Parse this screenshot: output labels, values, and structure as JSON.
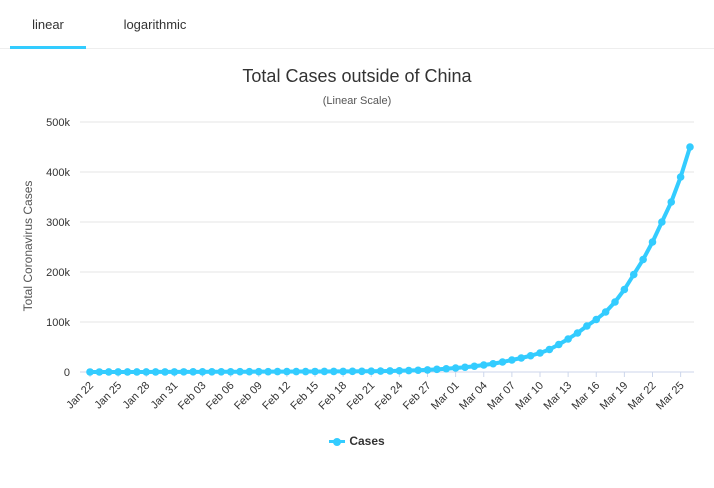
{
  "tabs": [
    {
      "label": "linear",
      "active": true
    },
    {
      "label": "logarithmic",
      "active": false
    }
  ],
  "colors": {
    "series": "#33ccff",
    "grid": "#e6e6e6",
    "tab_underline": "#33ccff"
  },
  "legend_icon": "line-with-circle-marker",
  "chart_data": {
    "type": "line",
    "title": "Total Cases outside of China",
    "subtitle": "(Linear Scale)",
    "xlabel": "",
    "ylabel": "Total Coronavirus Cases",
    "ylim": [
      0,
      500000
    ],
    "y_ticks": [
      0,
      100000,
      200000,
      300000,
      400000,
      500000
    ],
    "y_tick_labels": [
      "0",
      "100k",
      "200k",
      "300k",
      "400k",
      "500k"
    ],
    "x_tick_labels": [
      "Jan 22",
      "Jan 25",
      "Jan 28",
      "Jan 31",
      "Feb 03",
      "Feb 06",
      "Feb 09",
      "Feb 12",
      "Feb 15",
      "Feb 18",
      "Feb 21",
      "Feb 24",
      "Feb 27",
      "Mar 01",
      "Mar 04",
      "Mar 07",
      "Mar 10",
      "Mar 13",
      "Mar 16",
      "Mar 19",
      "Mar 22",
      "Mar 25"
    ],
    "grid": true,
    "legend_position": "bottom-center",
    "series": [
      {
        "name": "Cases",
        "x": [
          "Jan 22",
          "Jan 23",
          "Jan 24",
          "Jan 25",
          "Jan 26",
          "Jan 27",
          "Jan 28",
          "Jan 29",
          "Jan 30",
          "Jan 31",
          "Feb 01",
          "Feb 02",
          "Feb 03",
          "Feb 04",
          "Feb 05",
          "Feb 06",
          "Feb 07",
          "Feb 08",
          "Feb 09",
          "Feb 10",
          "Feb 11",
          "Feb 12",
          "Feb 13",
          "Feb 14",
          "Feb 15",
          "Feb 16",
          "Feb 17",
          "Feb 18",
          "Feb 19",
          "Feb 20",
          "Feb 21",
          "Feb 22",
          "Feb 23",
          "Feb 24",
          "Feb 25",
          "Feb 26",
          "Feb 27",
          "Feb 28",
          "Feb 29",
          "Mar 01",
          "Mar 02",
          "Mar 03",
          "Mar 04",
          "Mar 05",
          "Mar 06",
          "Mar 07",
          "Mar 08",
          "Mar 09",
          "Mar 10",
          "Mar 11",
          "Mar 12",
          "Mar 13",
          "Mar 14",
          "Mar 15",
          "Mar 16",
          "Mar 17",
          "Mar 18",
          "Mar 19",
          "Mar 20",
          "Mar 21",
          "Mar 22",
          "Mar 23",
          "Mar 24",
          "Mar 25",
          "Mar 26"
        ],
        "values": [
          10,
          20,
          40,
          60,
          80,
          100,
          130,
          150,
          170,
          200,
          260,
          300,
          350,
          390,
          440,
          480,
          540,
          600,
          680,
          720,
          780,
          860,
          900,
          960,
          1020,
          1100,
          1150,
          1200,
          1300,
          1400,
          1600,
          1800,
          2100,
          2500,
          2900,
          3500,
          4200,
          5300,
          6500,
          8000,
          9500,
          11500,
          14000,
          16500,
          20000,
          24000,
          28000,
          32500,
          38000,
          45000,
          55000,
          66000,
          78000,
          92000,
          105000,
          120000,
          140000,
          165000,
          195000,
          225000,
          260000,
          300000,
          340000,
          390000,
          450000
        ]
      }
    ]
  }
}
